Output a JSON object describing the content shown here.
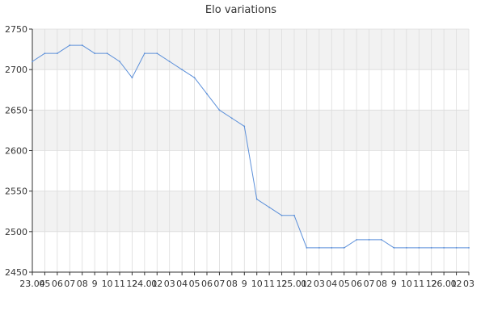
{
  "chart_data": {
    "type": "line",
    "title": "Elo variations",
    "xlabel": "",
    "ylabel": "",
    "ylim": [
      2450,
      2750
    ],
    "yticks": [
      2450,
      2500,
      2550,
      2600,
      2650,
      2700,
      2750
    ],
    "grid": true,
    "legend": "none",
    "x_tick_labels": [
      "23.04",
      "05",
      "06",
      "07",
      "08",
      "9",
      "10",
      "11",
      "12",
      "24.01",
      "02",
      "03",
      "04",
      "05",
      "06",
      "07",
      "08",
      "9",
      "10",
      "11",
      "12",
      "25.01",
      "02",
      "03",
      "04",
      "05",
      "06",
      "07",
      "08",
      "9",
      "10",
      "11",
      "12",
      "26.01",
      "02",
      "03"
    ],
    "series": [
      {
        "values": [
          2710,
          2720,
          2720,
          2730,
          2730,
          2720,
          2720,
          2710,
          2690,
          2720,
          2720,
          2710,
          2700,
          2690,
          2670,
          2650,
          2640,
          2630,
          2540,
          2530,
          2520,
          2520,
          2480,
          2480,
          2480,
          2480,
          2490,
          2490,
          2490,
          2480,
          2480,
          2480,
          2480,
          2480,
          2480,
          2480
        ]
      }
    ],
    "colors": {
      "line": "#5b8fd9",
      "band": "#f2f2f2",
      "grid": "#dcdcdc",
      "axis": "#333333"
    }
  }
}
